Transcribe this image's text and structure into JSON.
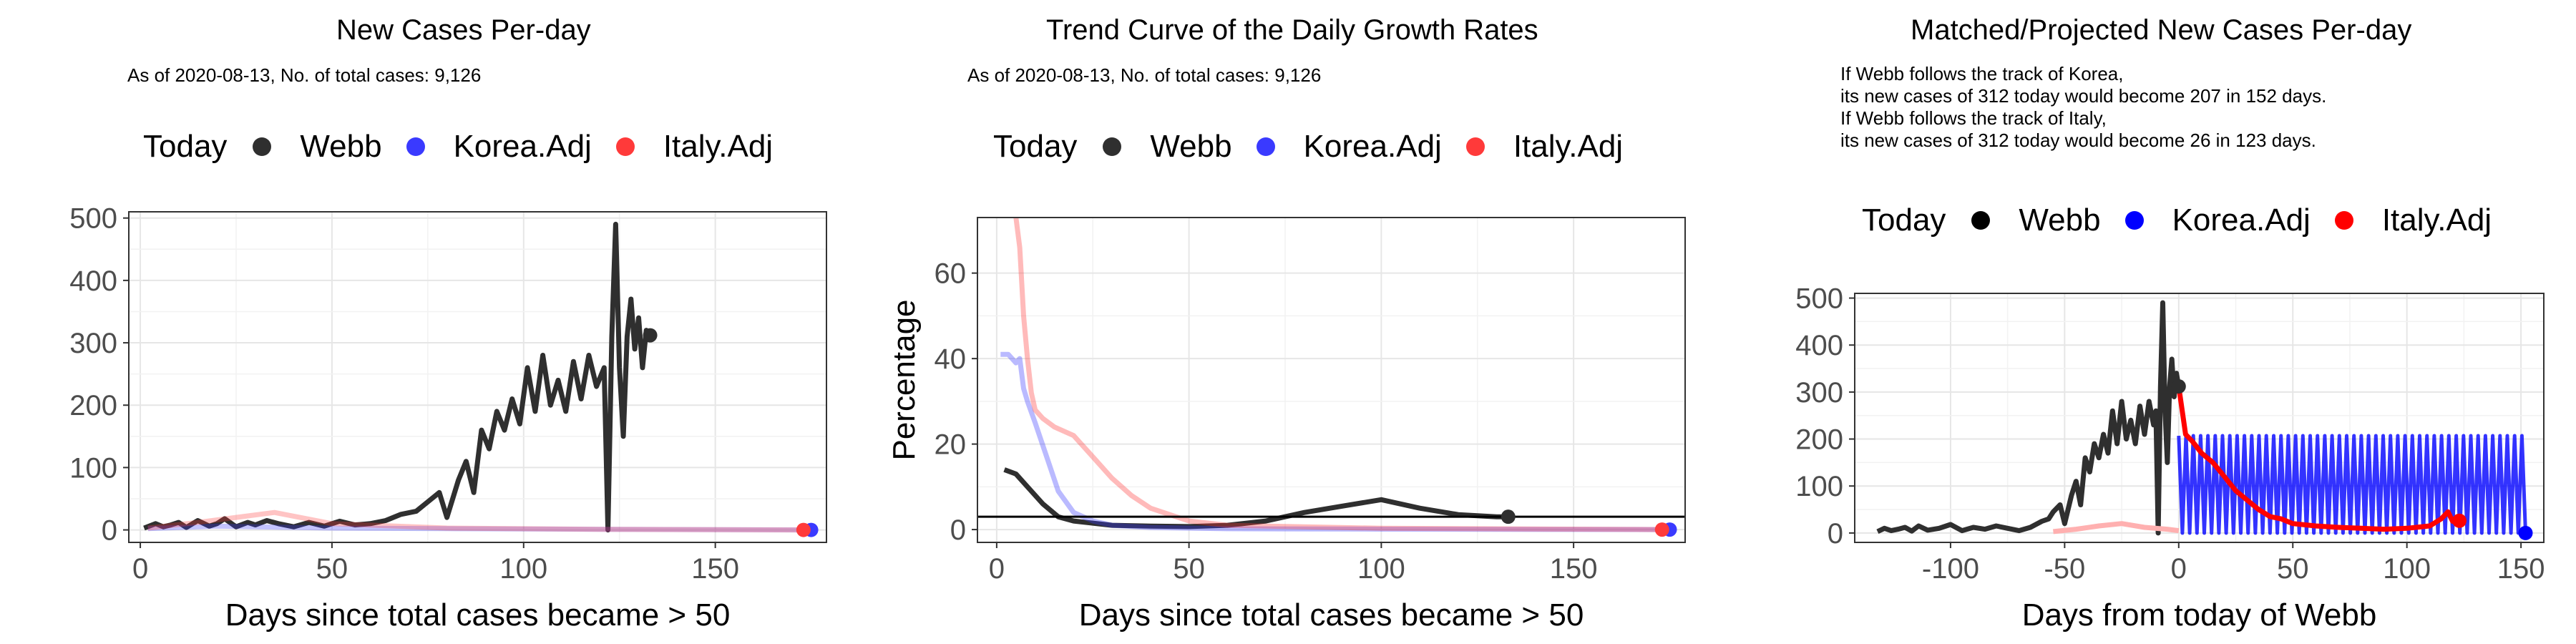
{
  "charts": [
    {
      "title": "New Cases Per-day",
      "note": "As of 2020-08-13, No. of total cases: 9,126",
      "legend": {
        "label": "Today",
        "items": [
          {
            "name": "Webb",
            "color": "#2f2f2f"
          },
          {
            "name": "Korea.Adj",
            "color": "#3a3aff"
          },
          {
            "name": "Italy.Adj",
            "color": "#ff3a3a"
          }
        ]
      },
      "xlabel": "Days since total cases became > 50"
    },
    {
      "title": "Trend Curve of the Daily Growth Rates",
      "note": "As of 2020-08-13, No. of total cases: 9,126",
      "legend": {
        "label": "Today",
        "items": [
          {
            "name": "Webb",
            "color": "#2f2f2f"
          },
          {
            "name": "Korea.Adj",
            "color": "#3a3aff"
          },
          {
            "name": "Italy.Adj",
            "color": "#ff3a3a"
          }
        ]
      },
      "xlabel": "Days since total cases became > 50",
      "ylabel": "Percentage"
    },
    {
      "title": "Matched/Projected New Cases Per-day",
      "note_lines": [
        "If Webb follows the track of Korea,",
        "its new cases of 312 today would become 207 in 152 days.",
        "If Webb follows the track of Italy,",
        "its new cases of 312 today would become 26 in 123 days."
      ],
      "legend": {
        "label": "Today",
        "items": [
          {
            "name": "Webb",
            "color": "#000000"
          },
          {
            "name": "Korea.Adj",
            "color": "#0000ff"
          },
          {
            "name": "Italy.Adj",
            "color": "#ff0000"
          }
        ]
      },
      "xlabel": "Days from today of Webb"
    }
  ],
  "chart_data": [
    {
      "type": "line",
      "title": "New Cases Per-day",
      "xlabel": "Days since total cases became > 50",
      "xlim": [
        -3,
        179
      ],
      "ylim": [
        -20,
        510
      ],
      "xticks": [
        0,
        50,
        100,
        150
      ],
      "yticks": [
        0,
        100,
        200,
        300,
        400,
        500
      ],
      "grid": true,
      "legend_position": "top",
      "series": [
        {
          "name": "Webb",
          "color": "#2f2f2f",
          "x": [
            1,
            4,
            6,
            8,
            10,
            12,
            15,
            18,
            20,
            22,
            25,
            28,
            30,
            33,
            36,
            40,
            44,
            48,
            52,
            56,
            60,
            64,
            68,
            72,
            75,
            78,
            80,
            83,
            85,
            87,
            89,
            91,
            93,
            95,
            97,
            99,
            101,
            103,
            105,
            107,
            109,
            111,
            113,
            115,
            117,
            119,
            121,
            122,
            123,
            124,
            125,
            126,
            127,
            128,
            129,
            130,
            131,
            132,
            133
          ],
          "y": [
            3,
            10,
            5,
            8,
            12,
            4,
            15,
            6,
            10,
            18,
            5,
            12,
            8,
            15,
            10,
            5,
            12,
            6,
            14,
            8,
            10,
            15,
            25,
            30,
            45,
            60,
            20,
            80,
            110,
            60,
            160,
            130,
            190,
            160,
            210,
            170,
            260,
            190,
            280,
            200,
            240,
            190,
            270,
            210,
            280,
            230,
            260,
            0,
            310,
            490,
            260,
            150,
            310,
            370,
            290,
            340,
            260,
            320,
            312
          ]
        },
        {
          "name": "Korea.Adj",
          "color": "#3a3aff",
          "opacity": 0.3,
          "x": [
            2,
            20,
            50,
            80,
            120,
            175
          ],
          "y": [
            2,
            6,
            3,
            2,
            1,
            0
          ]
        },
        {
          "name": "Italy.Adj",
          "color": "#ff3a3a",
          "opacity": 0.3,
          "x": [
            2,
            15,
            25,
            35,
            50,
            80,
            120,
            173
          ],
          "y": [
            3,
            12,
            20,
            28,
            10,
            3,
            1,
            0
          ]
        }
      ],
      "today_points": [
        {
          "name": "Webb",
          "x": 133,
          "y": 312
        },
        {
          "name": "Korea.Adj",
          "x": 175,
          "y": 0
        },
        {
          "name": "Italy.Adj",
          "x": 173,
          "y": 0
        }
      ]
    },
    {
      "type": "line",
      "title": "Trend Curve of the Daily Growth Rates",
      "xlabel": "Days since total cases became > 50",
      "ylabel": "Percentage",
      "xlim": [
        -5,
        179
      ],
      "ylim": [
        -3,
        73
      ],
      "xticks": [
        0,
        50,
        100,
        150
      ],
      "yticks": [
        0,
        20,
        40,
        60
      ],
      "grid": true,
      "legend_position": "top",
      "hline": 3,
      "series": [
        {
          "name": "Webb",
          "color": "#2f2f2f",
          "x": [
            2,
            5,
            8,
            12,
            16,
            20,
            25,
            30,
            40,
            50,
            60,
            70,
            80,
            90,
            100,
            110,
            120,
            130,
            133
          ],
          "y": [
            14,
            13,
            10,
            6,
            3,
            2,
            1.5,
            1,
            0.8,
            0.7,
            1,
            2,
            4,
            5.5,
            7,
            5,
            3.5,
            3,
            3
          ]
        },
        {
          "name": "Korea.Adj",
          "color": "#3a3aff",
          "opacity": 0.35,
          "x": [
            1,
            3,
            5,
            6,
            7,
            8,
            10,
            13,
            16,
            20,
            25,
            30,
            40,
            60,
            100,
            175
          ],
          "y": [
            41,
            41,
            39,
            40,
            33,
            30,
            25,
            17,
            9,
            4,
            2,
            1,
            0.5,
            0.2,
            0.1,
            0
          ]
        },
        {
          "name": "Italy.Adj",
          "color": "#ff3a3a",
          "opacity": 0.35,
          "x": [
            5,
            6,
            7,
            8,
            9,
            10,
            12,
            15,
            20,
            25,
            30,
            35,
            40,
            50,
            60,
            100,
            173
          ],
          "y": [
            73,
            66,
            50,
            40,
            32,
            28,
            26,
            24,
            22,
            17,
            12,
            8,
            5,
            2,
            1,
            0.3,
            0
          ]
        }
      ],
      "today_points": [
        {
          "name": "Webb",
          "x": 133,
          "y": 3
        },
        {
          "name": "Korea.Adj",
          "x": 175,
          "y": 0
        },
        {
          "name": "Italy.Adj",
          "x": 173,
          "y": 0
        }
      ]
    },
    {
      "type": "line",
      "title": "Matched/Projected New Cases Per-day",
      "xlabel": "Days from today of Webb",
      "xlim": [
        -142,
        160
      ],
      "ylim": [
        -20,
        510
      ],
      "xticks": [
        -100,
        -50,
        0,
        50,
        100,
        150
      ],
      "yticks": [
        0,
        100,
        200,
        300,
        400,
        500
      ],
      "grid": true,
      "legend_position": "top",
      "series": [
        {
          "name": "Webb",
          "color": "#2f2f2f",
          "x": [
            -132,
            -129,
            -126,
            -123,
            -120,
            -117,
            -114,
            -110,
            -105,
            -100,
            -95,
            -90,
            -85,
            -80,
            -75,
            -70,
            -65,
            -60,
            -57,
            -55,
            -52,
            -50,
            -47,
            -45,
            -43,
            -41,
            -39,
            -37,
            -35,
            -33,
            -31,
            -29,
            -27,
            -25,
            -23,
            -21,
            -19,
            -17,
            -15,
            -13,
            -11,
            -10,
            -9,
            -8,
            -7,
            -6,
            -5,
            -4,
            -3,
            -2,
            -1,
            0
          ],
          "y": [
            3,
            10,
            5,
            8,
            12,
            4,
            15,
            6,
            10,
            18,
            5,
            12,
            8,
            15,
            10,
            5,
            12,
            25,
            30,
            45,
            60,
            20,
            80,
            110,
            60,
            160,
            130,
            190,
            160,
            210,
            170,
            260,
            190,
            280,
            200,
            240,
            190,
            270,
            210,
            280,
            230,
            260,
            0,
            310,
            490,
            260,
            150,
            310,
            370,
            290,
            340,
            312
          ]
        },
        {
          "name": "Korea.Adj",
          "color": "#0000ff",
          "kind": "oscillating",
          "x_start": 0,
          "x_end": 152,
          "low": 0,
          "high": 207
        },
        {
          "name": "Italy.Adj",
          "color": "#ff0000",
          "x": [
            0,
            3,
            6,
            10,
            15,
            20,
            25,
            30,
            35,
            40,
            45,
            50,
            60,
            70,
            80,
            90,
            100,
            110,
            115,
            118,
            120,
            123
          ],
          "y": [
            312,
            210,
            195,
            170,
            150,
            120,
            90,
            70,
            50,
            35,
            30,
            20,
            15,
            12,
            10,
            8,
            10,
            15,
            30,
            45,
            25,
            26
          ]
        },
        {
          "name": "Italy.Adj (history)",
          "color": "#ffb0b0",
          "x": [
            -55,
            -45,
            -35,
            -25,
            -15,
            -5,
            0
          ],
          "y": [
            3,
            8,
            15,
            20,
            12,
            8,
            5
          ]
        }
      ],
      "today_points": [
        {
          "name": "Webb",
          "x": 0,
          "y": 312
        },
        {
          "name": "Korea.Adj",
          "x": 152,
          "y": 0
        },
        {
          "name": "Italy.Adj",
          "x": 123,
          "y": 26
        }
      ]
    }
  ]
}
